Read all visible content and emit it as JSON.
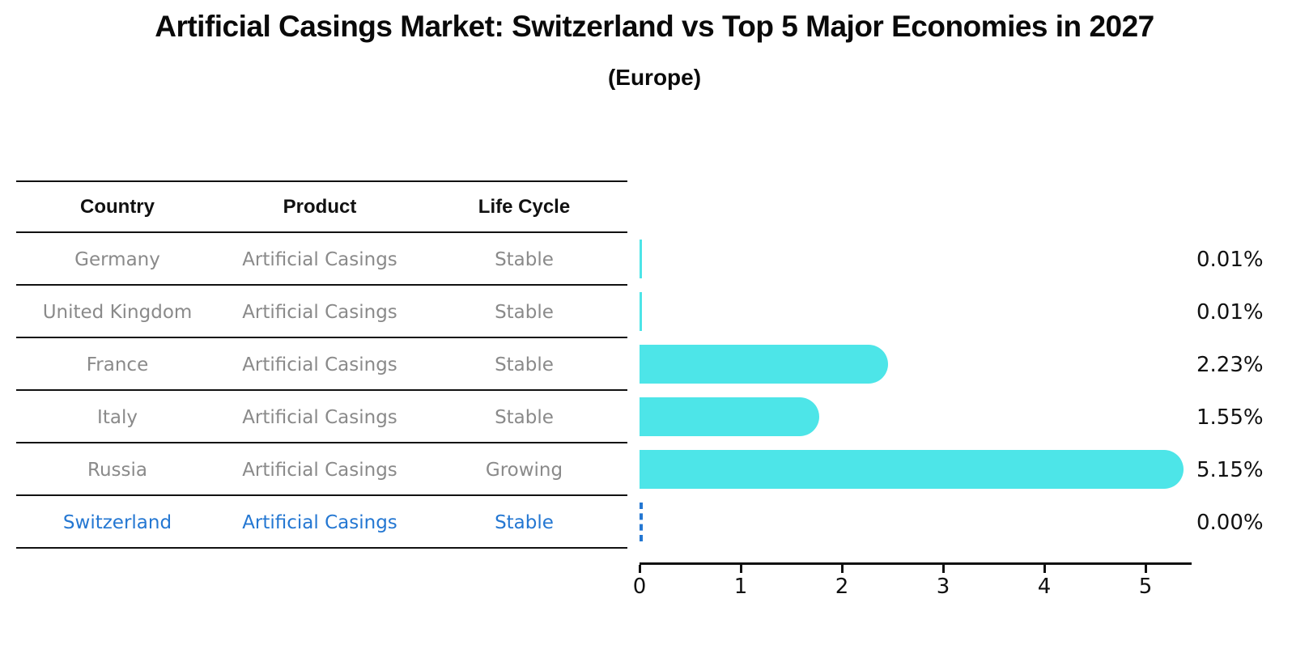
{
  "title": "Artificial Casings Market: Switzerland vs Top 5 Major Economies in 2027",
  "subtitle": "(Europe)",
  "table": {
    "headers": [
      "Country",
      "Product",
      "Life Cycle"
    ],
    "rows": [
      {
        "country": "Germany",
        "product": "Artificial Casings",
        "life_cycle": "Stable",
        "highlight": false
      },
      {
        "country": "United Kingdom",
        "product": "Artificial Casings",
        "life_cycle": "Stable",
        "highlight": false
      },
      {
        "country": "France",
        "product": "Artificial Casings",
        "life_cycle": "Stable",
        "highlight": false
      },
      {
        "country": "Italy",
        "product": "Artificial Casings",
        "life_cycle": "Stable",
        "highlight": false
      },
      {
        "country": "Russia",
        "product": "Artificial Casings",
        "life_cycle": "Growing",
        "highlight": false
      },
      {
        "country": "Switzerland",
        "product": "Artificial Casings",
        "life_cycle": "Stable",
        "highlight": true
      }
    ]
  },
  "chart_data": {
    "type": "bar",
    "orientation": "horizontal",
    "title": "Artificial Casings Market: Switzerland vs Top 5 Major Economies in 2027",
    "subtitle": "(Europe)",
    "categories": [
      "Germany",
      "United Kingdom",
      "France",
      "Italy",
      "Russia",
      "Switzerland"
    ],
    "values": [
      0.01,
      0.01,
      2.23,
      1.55,
      5.15,
      0
    ],
    "value_labels": [
      "0.01%",
      "0.01%",
      "2.23%",
      "1.55%",
      "5.15%",
      "0.00%"
    ],
    "xlabel": "",
    "ylabel": "",
    "xlim": [
      0,
      5.4
    ],
    "x_ticks": [
      "0",
      "1",
      "2",
      "3",
      "4",
      "5"
    ],
    "grid": false,
    "legend": false,
    "bar_color": "#4de5e8",
    "highlight_color": "#2477d2",
    "highlight_style": "dashed-outline-zero-bar"
  },
  "colors": {
    "bar_cyan": "#4de5e8",
    "highlight_blue": "#2477d2",
    "row_text_gray": "#8a8a8a",
    "line_black": "#111111"
  }
}
